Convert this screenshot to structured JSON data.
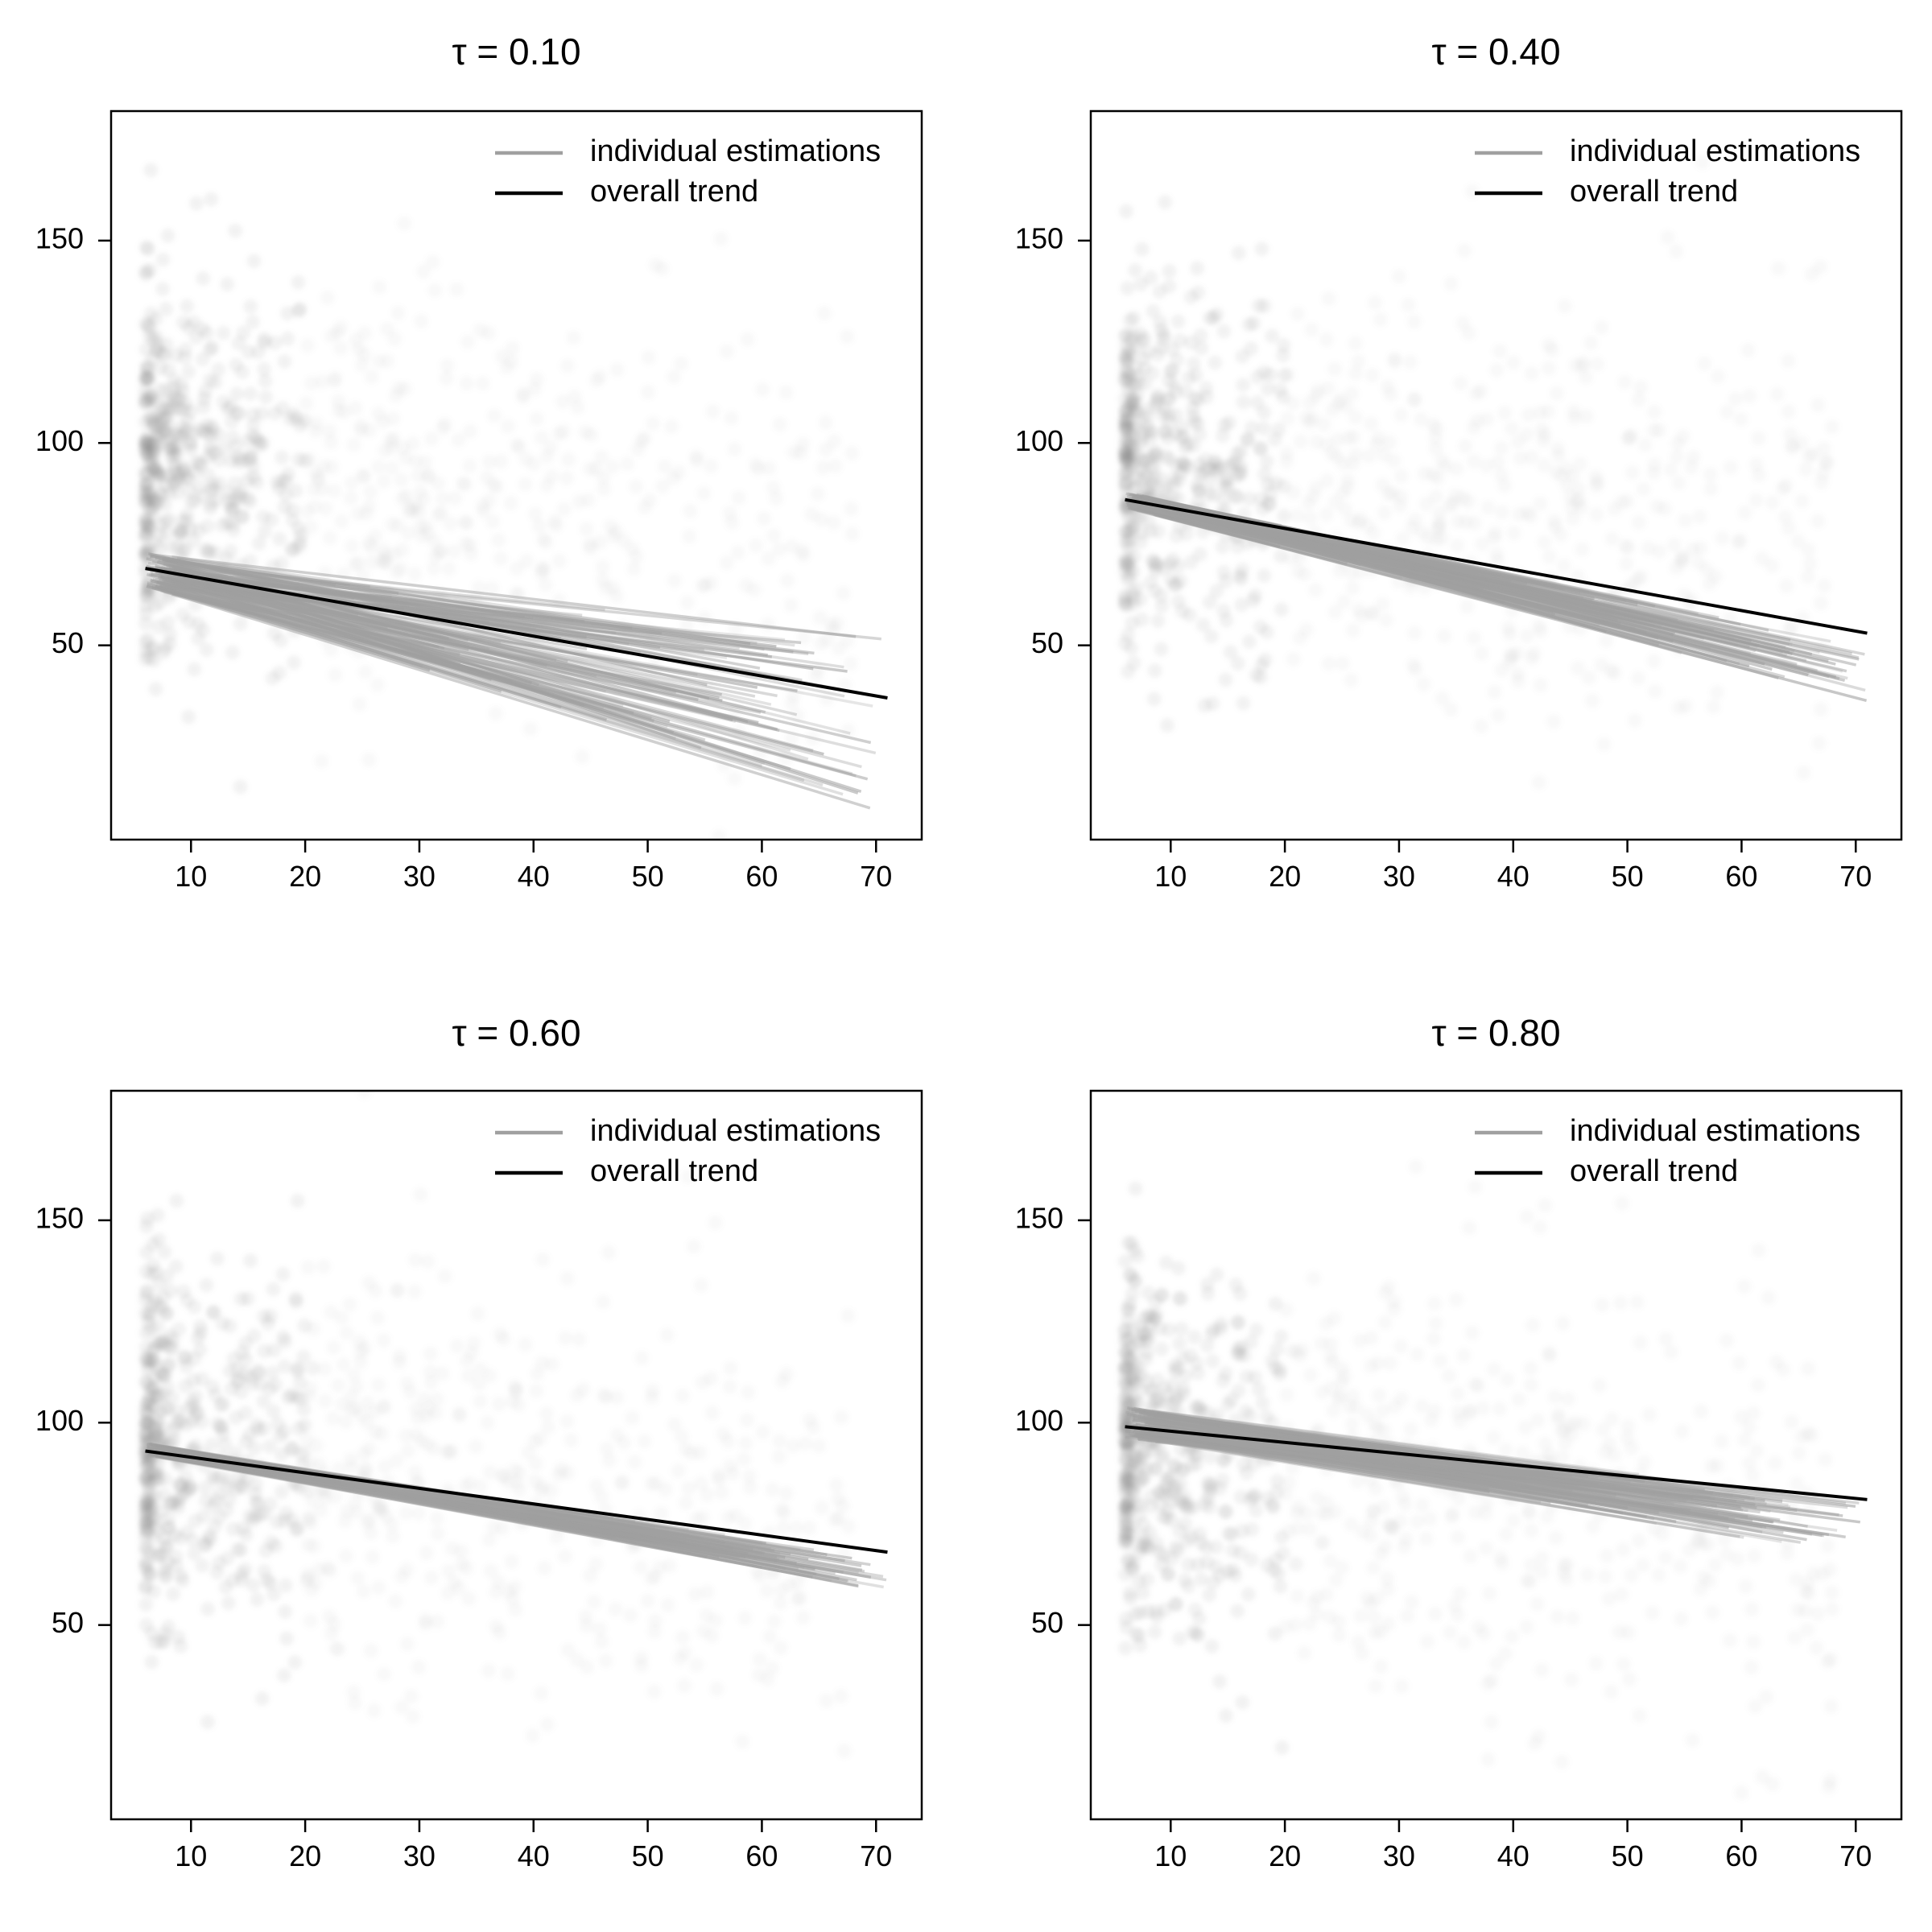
{
  "figure": {
    "colors": {
      "individual": "#a0a0a0",
      "overall": "#000000",
      "scatter": "#808080",
      "frame": "#000000"
    }
  },
  "chart_data": [
    {
      "type": "line",
      "title": "τ = 0.10",
      "xlabel": "",
      "ylabel": "",
      "xlim": [
        3,
        74
      ],
      "ylim": [
        2,
        182
      ],
      "xticks": [
        10,
        20,
        30,
        40,
        50,
        60,
        70
      ],
      "yticks": [
        50,
        100,
        150
      ],
      "grid": false,
      "legend": {
        "position": "top-right",
        "entries": [
          "individual estimations",
          "overall trend"
        ]
      },
      "series": [
        {
          "name": "overall trend",
          "x": [
            6,
            71
          ],
          "y": [
            69,
            37
          ]
        },
        {
          "name": "individual estimations",
          "x": [
            6,
            71
          ],
          "y_start_range": [
            64,
            73
          ],
          "y_end_range": [
            8,
            52
          ]
        }
      ]
    },
    {
      "type": "line",
      "title": "τ = 0.40",
      "xlabel": "",
      "ylabel": "",
      "xlim": [
        3,
        74
      ],
      "ylim": [
        2,
        182
      ],
      "xticks": [
        10,
        20,
        30,
        40,
        50,
        60,
        70
      ],
      "yticks": [
        50,
        100,
        150
      ],
      "grid": false,
      "legend": {
        "position": "top-right",
        "entries": [
          "individual estimations",
          "overall trend"
        ]
      },
      "series": [
        {
          "name": "overall trend",
          "x": [
            6,
            71
          ],
          "y": [
            86,
            53
          ]
        },
        {
          "name": "individual estimations",
          "x": [
            6,
            71
          ],
          "y_start_range": [
            84,
            88
          ],
          "y_end_range": [
            35,
            50
          ]
        }
      ]
    },
    {
      "type": "line",
      "title": "τ = 0.60",
      "xlabel": "",
      "ylabel": "",
      "xlim": [
        3,
        74
      ],
      "ylim": [
        2,
        182
      ],
      "xticks": [
        10,
        20,
        30,
        40,
        50,
        60,
        70
      ],
      "yticks": [
        50,
        100,
        150
      ],
      "grid": false,
      "legend": {
        "position": "top-right",
        "entries": [
          "individual estimations",
          "overall trend"
        ]
      },
      "series": [
        {
          "name": "overall trend",
          "x": [
            6,
            71
          ],
          "y": [
            93,
            68
          ]
        },
        {
          "name": "individual estimations",
          "x": [
            6,
            71
          ],
          "y_start_range": [
            92,
            95
          ],
          "y_end_range": [
            58,
            66
          ]
        }
      ]
    },
    {
      "type": "line",
      "title": "τ = 0.80",
      "xlabel": "",
      "ylabel": "",
      "xlim": [
        3,
        74
      ],
      "ylim": [
        2,
        182
      ],
      "xticks": [
        10,
        20,
        30,
        40,
        50,
        60,
        70
      ],
      "yticks": [
        50,
        100,
        150
      ],
      "grid": false,
      "legend": {
        "position": "top-right",
        "entries": [
          "individual estimations",
          "overall trend"
        ]
      },
      "series": [
        {
          "name": "overall trend",
          "x": [
            6,
            71
          ],
          "y": [
            99,
            81
          ]
        },
        {
          "name": "individual estimations",
          "x": [
            6,
            71
          ],
          "y_start_range": [
            96,
            104
          ],
          "y_end_range": [
            66,
            80
          ]
        }
      ]
    }
  ]
}
